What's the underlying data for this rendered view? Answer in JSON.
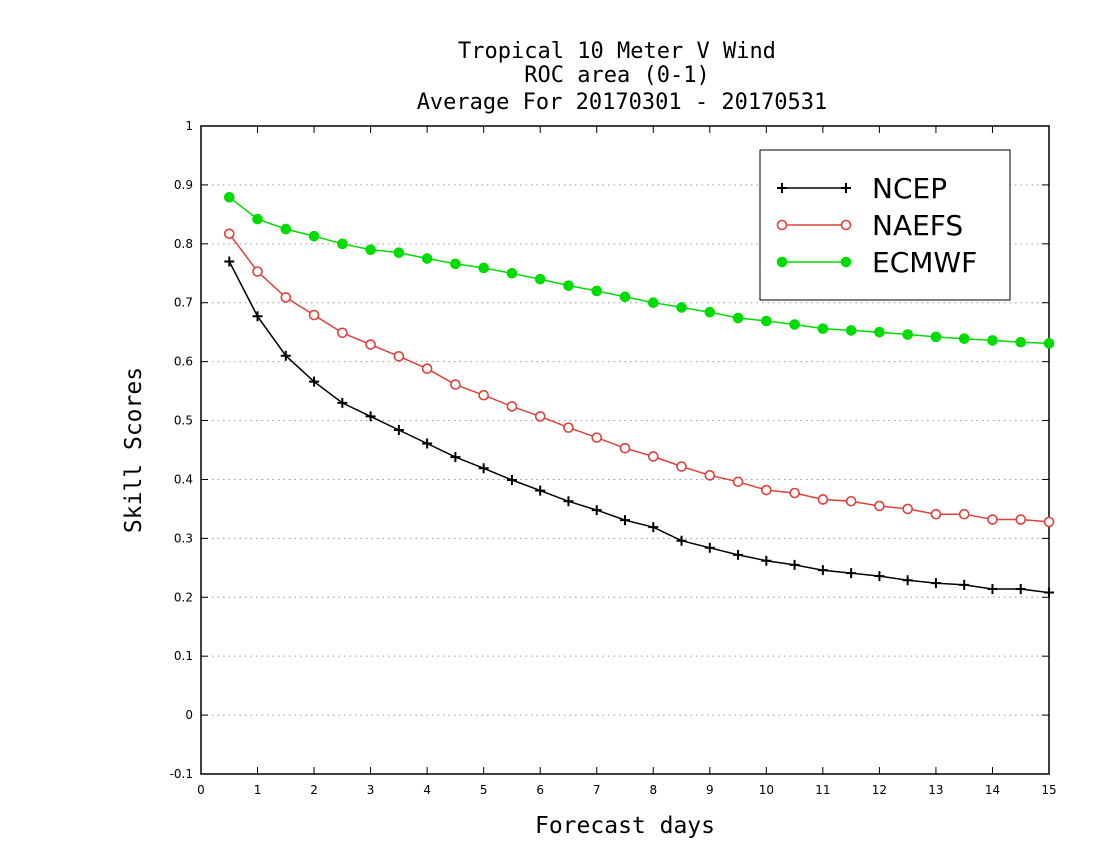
{
  "chart_data": {
    "type": "line",
    "title": [
      "Tropical 10 Meter V Wind",
      "ROC area (0-1)",
      "Average For 20170301 - 20170531"
    ],
    "xlabel": "Forecast days",
    "ylabel": "Skill Scores",
    "xlim": [
      0,
      15
    ],
    "ylim": [
      -0.1,
      1
    ],
    "xticks": [
      0,
      1,
      2,
      3,
      4,
      5,
      6,
      7,
      8,
      9,
      10,
      11,
      12,
      13,
      14,
      15
    ],
    "yticks": [
      -0.1,
      0,
      0.1,
      0.2,
      0.3,
      0.4,
      0.5,
      0.6,
      0.7,
      0.8,
      0.9,
      1
    ],
    "ytick_labels": [
      "-0.1",
      "0",
      "0.1",
      "0.2",
      "0.3",
      "0.4",
      "0.5",
      "0.6",
      "0.7",
      "0.8",
      "0.9",
      "1"
    ],
    "grid": "horizontal dotted",
    "legend_position": "top-right",
    "x": [
      0.5,
      1,
      1.5,
      2,
      2.5,
      3,
      3.5,
      4,
      4.5,
      5,
      5.5,
      6,
      6.5,
      7,
      7.5,
      8,
      8.5,
      9,
      9.5,
      10,
      10.5,
      11,
      11.5,
      12,
      12.5,
      13,
      13.5,
      14,
      14.5,
      15
    ],
    "series": [
      {
        "name": "NCEP",
        "color": "#000000",
        "marker": "plus",
        "values": [
          0.77,
          0.677,
          0.61,
          0.566,
          0.53,
          0.507,
          0.484,
          0.461,
          0.438,
          0.419,
          0.399,
          0.381,
          0.363,
          0.348,
          0.331,
          0.319,
          0.296,
          0.284,
          0.272,
          0.262,
          0.255,
          0.246,
          0.241,
          0.236,
          0.229,
          0.224,
          0.221,
          0.214,
          0.214,
          0.208
        ]
      },
      {
        "name": "NAEFS",
        "color": "#e0403c",
        "marker": "open-circle",
        "values": [
          0.817,
          0.753,
          0.709,
          0.679,
          0.649,
          0.629,
          0.609,
          0.588,
          0.561,
          0.543,
          0.524,
          0.507,
          0.488,
          0.471,
          0.453,
          0.439,
          0.422,
          0.407,
          0.396,
          0.382,
          0.377,
          0.366,
          0.363,
          0.355,
          0.35,
          0.341,
          0.341,
          0.332,
          0.332,
          0.328
        ]
      },
      {
        "name": "ECMWF",
        "color": "#00dc00",
        "marker": "filled-circle",
        "values": [
          0.879,
          0.842,
          0.825,
          0.813,
          0.8,
          0.79,
          0.785,
          0.775,
          0.766,
          0.759,
          0.75,
          0.74,
          0.729,
          0.72,
          0.71,
          0.7,
          0.692,
          0.684,
          0.674,
          0.669,
          0.663,
          0.656,
          0.653,
          0.65,
          0.646,
          0.642,
          0.639,
          0.636,
          0.633,
          0.631
        ]
      }
    ]
  }
}
